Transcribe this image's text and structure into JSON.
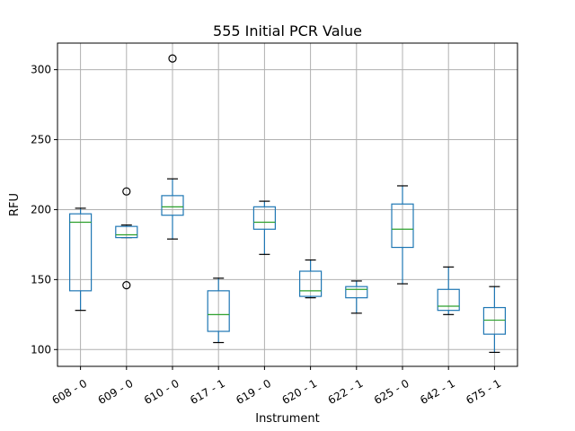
{
  "chart_data": {
    "type": "box",
    "title": "555 Initial PCR Value",
    "xlabel": "Instrument",
    "ylabel": "RFU",
    "ylim": [
      88,
      319
    ],
    "yticks": [
      100,
      150,
      200,
      250,
      300
    ],
    "grid": true,
    "colors": {
      "box": "#1f77b4",
      "median": "#2ca02c",
      "whisker": "#1f77b4",
      "cap": "#000000",
      "flier": "#000000",
      "grid": "#b0b0b0"
    },
    "categories": [
      "608 - 0",
      "609 - 0",
      "610 - 0",
      "617 - 1",
      "619 - 0",
      "620 - 1",
      "622 - 1",
      "625 - 0",
      "642 - 1",
      "675 - 1"
    ],
    "boxes": [
      {
        "category": "608 - 0",
        "whisker_low": 128,
        "q1": 142,
        "median": 191,
        "q3": 197,
        "whisker_high": 201,
        "fliers": []
      },
      {
        "category": "609 - 0",
        "whisker_low": 180,
        "q1": 180,
        "median": 182,
        "q3": 188,
        "whisker_high": 189,
        "fliers": [
          146,
          213
        ]
      },
      {
        "category": "610 - 0",
        "whisker_low": 179,
        "q1": 196,
        "median": 202,
        "q3": 210,
        "whisker_high": 222,
        "fliers": [
          308
        ]
      },
      {
        "category": "617 - 1",
        "whisker_low": 105,
        "q1": 113,
        "median": 125,
        "q3": 142,
        "whisker_high": 151,
        "fliers": []
      },
      {
        "category": "619 - 0",
        "whisker_low": 168,
        "q1": 186,
        "median": 191,
        "q3": 202,
        "whisker_high": 206,
        "fliers": []
      },
      {
        "category": "620 - 1",
        "whisker_low": 137,
        "q1": 138,
        "median": 142,
        "q3": 156,
        "whisker_high": 164,
        "fliers": []
      },
      {
        "category": "622 - 1",
        "whisker_low": 126,
        "q1": 137,
        "median": 143,
        "q3": 145,
        "whisker_high": 149,
        "fliers": []
      },
      {
        "category": "625 - 0",
        "whisker_low": 147,
        "q1": 173,
        "median": 186,
        "q3": 204,
        "whisker_high": 217,
        "fliers": []
      },
      {
        "category": "642 - 1",
        "whisker_low": 125,
        "q1": 128,
        "median": 131,
        "q3": 143,
        "whisker_high": 159,
        "fliers": []
      },
      {
        "category": "675 - 1",
        "whisker_low": 98,
        "q1": 111,
        "median": 121,
        "q3": 130,
        "whisker_high": 145,
        "fliers": []
      }
    ]
  }
}
